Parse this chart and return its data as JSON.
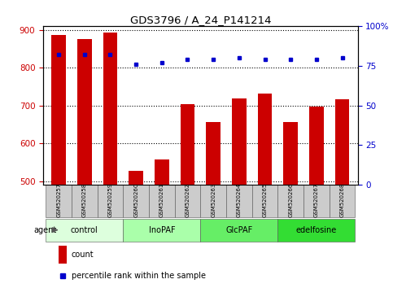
{
  "title": "GDS3796 / A_24_P141214",
  "samples": [
    "GSM520257",
    "GSM520258",
    "GSM520259",
    "GSM520260",
    "GSM520261",
    "GSM520262",
    "GSM520263",
    "GSM520264",
    "GSM520265",
    "GSM520266",
    "GSM520267",
    "GSM520268"
  ],
  "counts": [
    885,
    875,
    893,
    526,
    558,
    703,
    657,
    718,
    732,
    657,
    697,
    717
  ],
  "percentiles": [
    82,
    82,
    82,
    76,
    77,
    79,
    79,
    80,
    79,
    79,
    79,
    80
  ],
  "bar_color": "#cc0000",
  "dot_color": "#0000cc",
  "ylim_left": [
    490,
    910
  ],
  "ylim_right": [
    0,
    100
  ],
  "yticks_left": [
    500,
    600,
    700,
    800,
    900
  ],
  "yticks_right": [
    0,
    25,
    50,
    75,
    100
  ],
  "groups": [
    {
      "label": "control",
      "start": 0,
      "end": 3,
      "color": "#ddffdd"
    },
    {
      "label": "InoPAF",
      "start": 3,
      "end": 6,
      "color": "#aaffaa"
    },
    {
      "label": "GlcPAF",
      "start": 6,
      "end": 9,
      "color": "#66ee66"
    },
    {
      "label": "edelfosine",
      "start": 9,
      "end": 12,
      "color": "#33dd33"
    }
  ],
  "legend_count_color": "#cc0000",
  "legend_dot_color": "#0000cc",
  "grid_color": "#000000",
  "tick_color_left": "#cc0000",
  "tick_color_right": "#0000cc",
  "sample_box_color": "#cccccc",
  "bar_width": 0.55
}
